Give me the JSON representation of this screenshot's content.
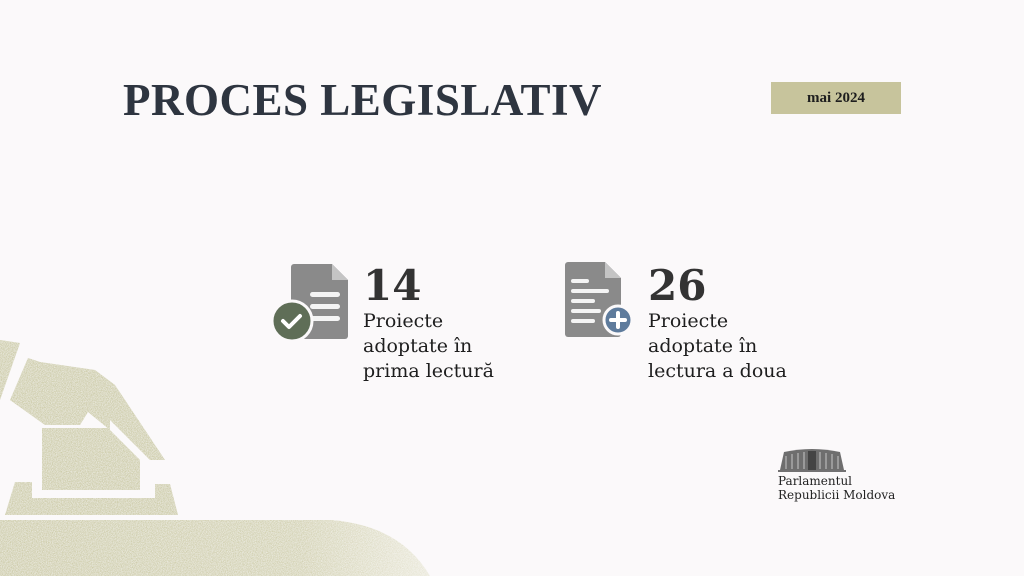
{
  "header": {
    "title": "PROCES LEGISLATIV",
    "period": "mai 2024"
  },
  "stats": [
    {
      "value": "14",
      "label": "Proiecte\nadoptate în\nprima lectură",
      "icon": "document-check-icon"
    },
    {
      "value": "26",
      "label": "Proiecte\nadoptate în\nlectura a doua",
      "icon": "document-plus-icon"
    }
  ],
  "logo": {
    "line1": "Parlamentul",
    "line2": "Republicii Moldova"
  },
  "colors": {
    "title": "#2e3540",
    "badge": "#c7c49c",
    "check": "#5f6e57",
    "plus": "#5e7b9c",
    "doc": "#8a8a8a",
    "accent": "#c9c7a0"
  }
}
